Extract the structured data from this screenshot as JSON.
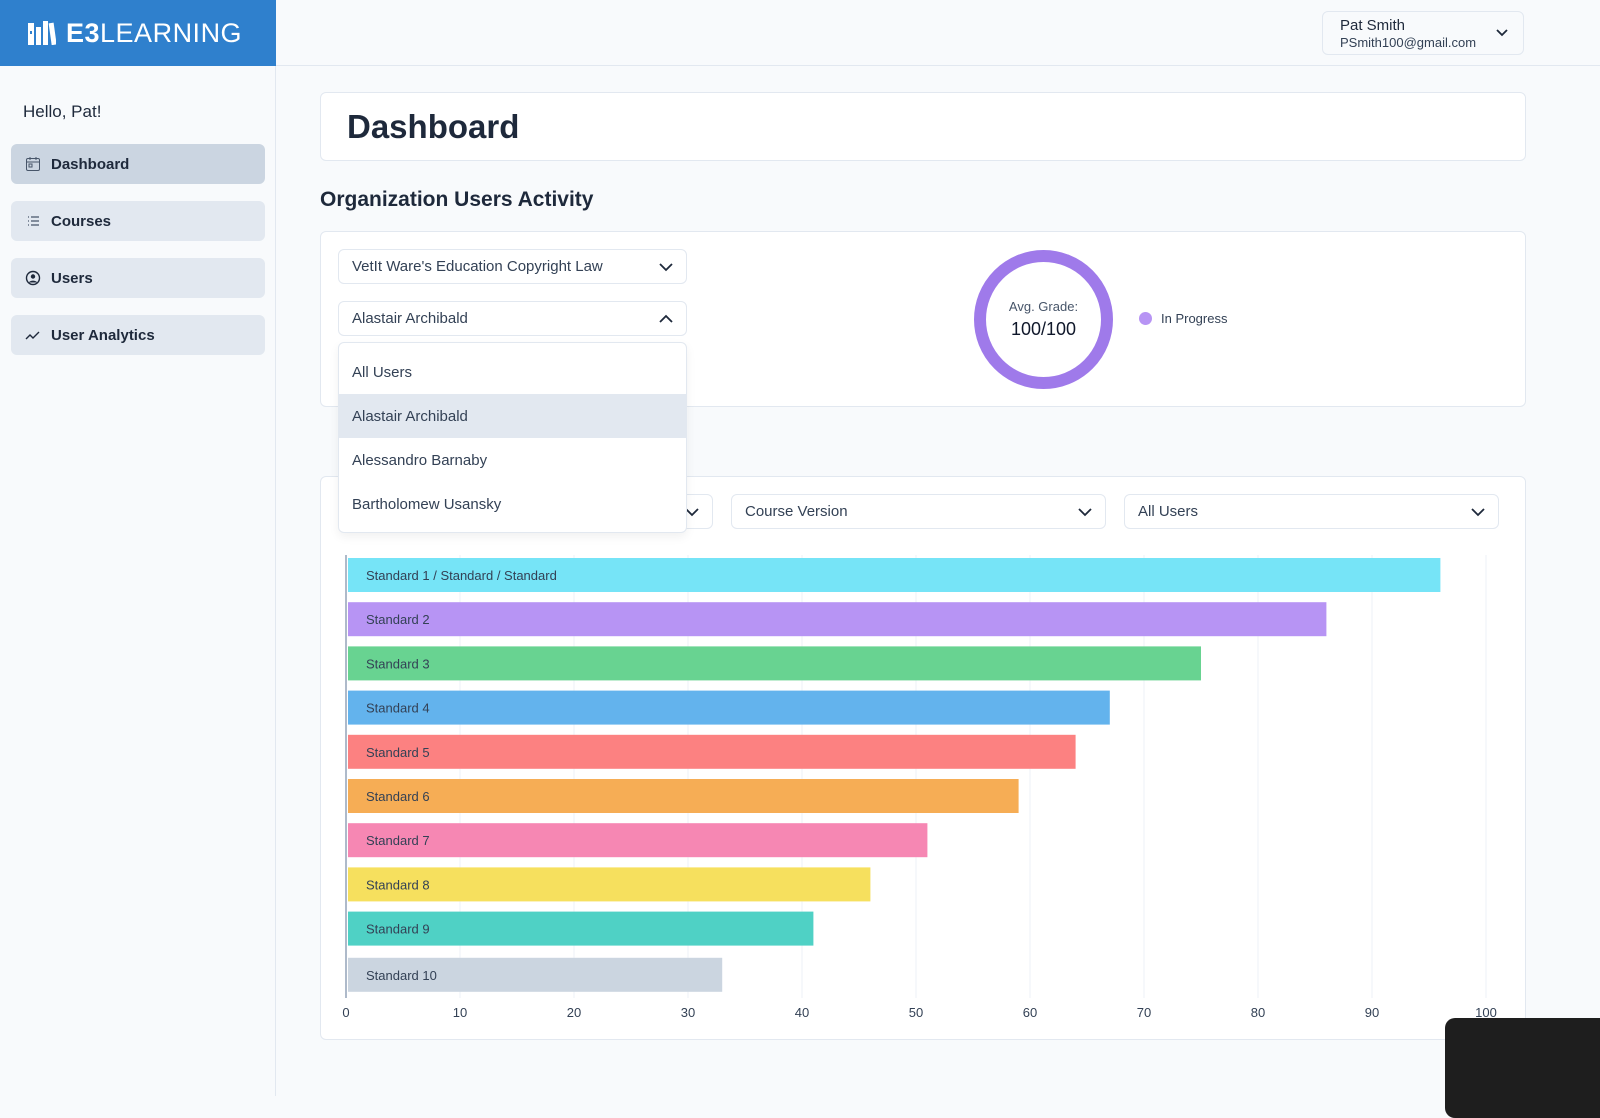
{
  "brand": {
    "bold": "E3",
    "rest": "LEARNING"
  },
  "sidebar": {
    "greeting": "Hello, Pat!",
    "items": [
      {
        "label": "Dashboard",
        "icon": "calendar-icon",
        "active": true
      },
      {
        "label": "Courses",
        "icon": "list-icon"
      },
      {
        "label": "Users",
        "icon": "user-circle-icon"
      },
      {
        "label": "User Analytics",
        "icon": "trend-icon"
      }
    ]
  },
  "user": {
    "name": "Pat Smith",
    "email": "PSmith100@gmail.com"
  },
  "page_title": "Dashboard",
  "section_title": "Organization Users Activity",
  "filters": {
    "course": "VetIt Ware's Education Copyright Law",
    "user": "Alastair Archibald",
    "user_options": [
      "All Users",
      "Alastair Archibald",
      "Alessandro Barnaby",
      "Bartholomew Usansky"
    ],
    "highlighted_option": "Alastair Archibald"
  },
  "donut": {
    "label": "Avg. Grade:",
    "value": "100/100",
    "legend": "In Progress",
    "color": "#9f7aea"
  },
  "chart_filters": {
    "first": "",
    "version": "Course Version",
    "users": "All Users"
  },
  "chart_data": {
    "type": "bar",
    "orientation": "horizontal",
    "categories": [
      "Standard 1 / Standard / Standard",
      "Standard 2",
      "Standard 3",
      "Standard 4",
      "Standard 5",
      "Standard 6",
      "Standard 7",
      "Standard 8",
      "Standard 9",
      "Standard 10"
    ],
    "values": [
      96,
      86,
      75,
      67,
      64,
      59,
      51,
      46,
      41,
      33
    ],
    "colors": [
      "#76e4f7",
      "#b794f4",
      "#68d391",
      "#63b3ed",
      "#fc8181",
      "#f6ad55",
      "#f687b3",
      "#f6e05e",
      "#4fd1c5",
      "#cbd5e0"
    ],
    "xlim": [
      0,
      100
    ],
    "xticks": [
      0,
      10,
      20,
      30,
      40,
      50,
      60,
      70,
      80,
      90,
      100
    ],
    "grid": true
  }
}
